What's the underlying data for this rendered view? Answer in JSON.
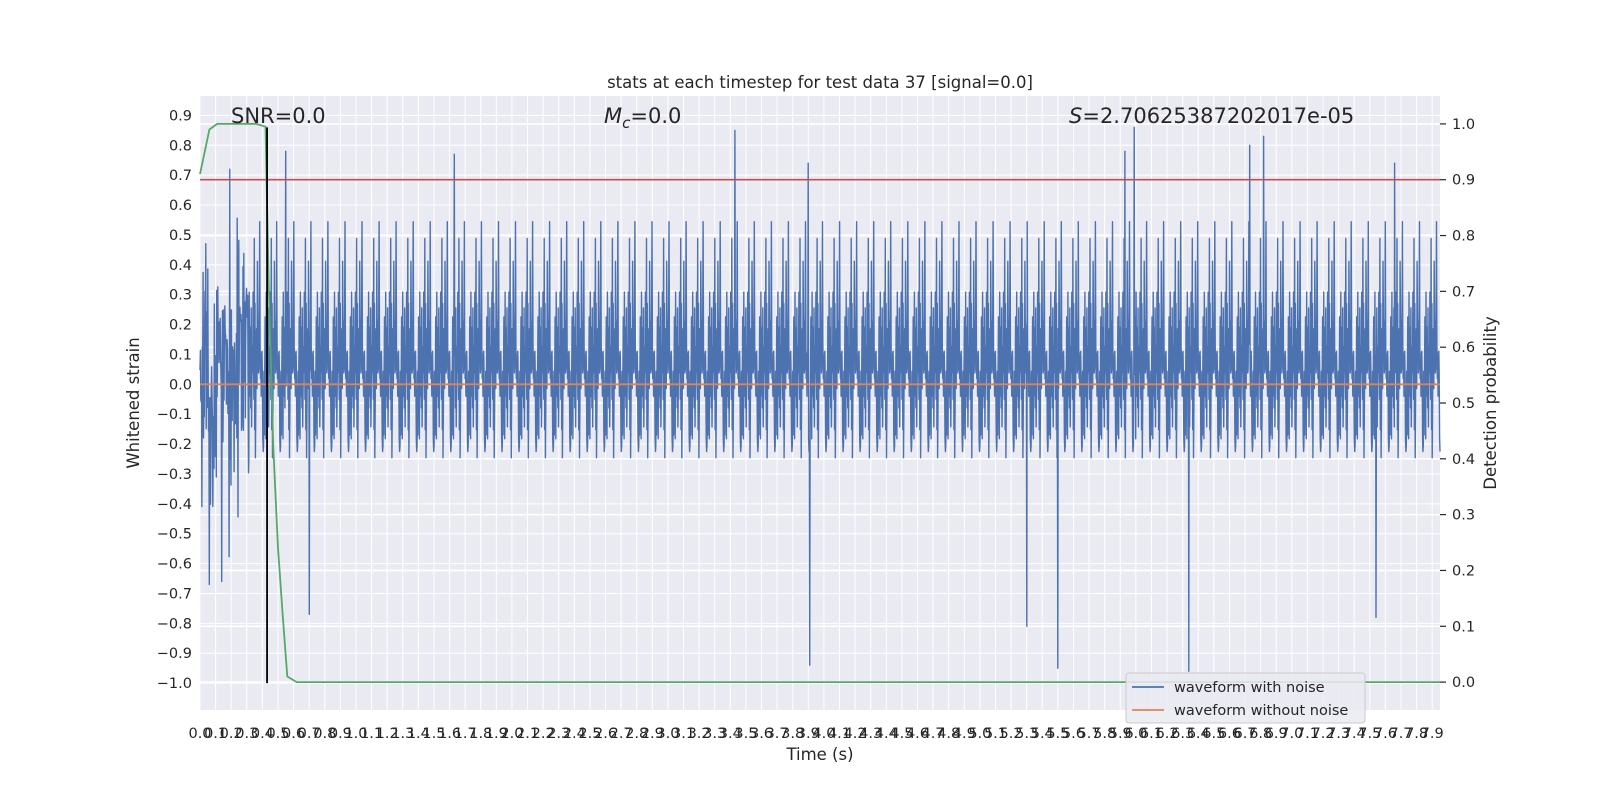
{
  "chart_data": {
    "type": "line",
    "title": "stats at each timestep for test data 37 [signal=0.0]",
    "xlabel": "Time (s)",
    "ylabel": "Whitened strain",
    "y2label": "Detection probability",
    "xlim": [
      0.0,
      7.95
    ],
    "ylim": [
      -1.09,
      0.965
    ],
    "y2lim": [
      -0.05,
      1.05
    ],
    "x_tick_labels": [
      "0.0",
      "0.1",
      "0.2",
      "0.3",
      "0.4",
      "0.5",
      "0.6",
      "0.7",
      "0.8",
      "0.9",
      "1.0",
      "1.1",
      "1.2",
      "1.3",
      "1.4",
      "1.5",
      "1.6",
      "1.7",
      "1.8",
      "1.9",
      "2.0",
      "2.1",
      "2.2",
      "2.3",
      "2.4",
      "2.5",
      "2.6",
      "2.7",
      "2.8",
      "2.9",
      "3.0",
      "3.1",
      "3.2",
      "3.3",
      "3.4",
      "3.5",
      "3.6",
      "3.7",
      "3.8",
      "3.9",
      "4.0",
      "4.1",
      "4.2",
      "4.3",
      "4.4",
      "4.5",
      "4.6",
      "4.7",
      "4.8",
      "4.9",
      "5.0",
      "5.1",
      "5.2",
      "5.3",
      "5.4",
      "5.5",
      "5.6",
      "5.7",
      "5.8",
      "5.9",
      "6.0",
      "6.1",
      "6.2",
      "6.3",
      "6.4",
      "6.5",
      "6.6",
      "6.7",
      "6.8",
      "6.9",
      "7.0",
      "7.1",
      "7.2",
      "7.3",
      "7.4",
      "7.5",
      "7.6",
      "7.7",
      "7.8",
      "7.9"
    ],
    "y_tick_labels": [
      "−1.0",
      "−0.9",
      "−0.8",
      "−0.7",
      "−0.6",
      "−0.5",
      "−0.4",
      "−0.3",
      "−0.2",
      "−0.1",
      "0.0",
      "0.1",
      "0.2",
      "0.3",
      "0.4",
      "0.5",
      "0.6",
      "0.7",
      "0.8",
      "0.9"
    ],
    "y2_tick_labels": [
      "0.0",
      "0.1",
      "0.2",
      "0.3",
      "0.4",
      "0.5",
      "0.6",
      "0.7",
      "0.8",
      "0.9",
      "1.0"
    ],
    "annotations": {
      "snr": "SNR=0.0",
      "mc_symbol": "M",
      "mc_subscript": "c",
      "mc_value": "=0.0",
      "s_symbol": "S",
      "s_value": "=2.70625387202017e-05"
    },
    "series": [
      {
        "name": "waveform with noise",
        "axis": "left",
        "color": "#4c72b0",
        "description": "dense noise trace, roughly between -0.5 and 0.5 with spikes",
        "range": [
          -0.97,
          0.87
        ],
        "spikes": [
          {
            "x": 0.55,
            "y": 0.78
          },
          {
            "x": 1.63,
            "y": 0.77
          },
          {
            "x": 3.43,
            "y": 0.85
          },
          {
            "x": 3.9,
            "y": 0.74
          },
          {
            "x": 3.91,
            "y": -0.94
          },
          {
            "x": 5.93,
            "y": 0.78
          },
          {
            "x": 5.99,
            "y": 0.86
          },
          {
            "x": 6.34,
            "y": -0.96
          },
          {
            "x": 6.73,
            "y": 0.8
          },
          {
            "x": 6.82,
            "y": 0.83
          },
          {
            "x": 7.66,
            "y": 0.74
          },
          {
            "x": 7.54,
            "y": -0.78
          },
          {
            "x": 5.5,
            "y": -0.95
          },
          {
            "x": 5.3,
            "y": -0.81
          },
          {
            "x": 0.7,
            "y": -0.77
          },
          {
            "x": 0.06,
            "y": -0.67
          },
          {
            "x": 0.14,
            "y": -0.66
          }
        ]
      },
      {
        "name": "waveform without noise",
        "axis": "left",
        "color": "#dd8452",
        "x": [
          0.0,
          7.95
        ],
        "y": [
          0.0,
          0.0
        ]
      },
      {
        "name": "detection probability",
        "axis": "right",
        "color": "#55a868",
        "x": [
          0.0,
          0.06,
          0.11,
          0.2,
          0.36,
          0.42,
          0.44,
          0.47,
          0.5,
          0.53,
          0.56,
          0.62,
          1.0,
          4.0,
          7.95
        ],
        "y": [
          0.91,
          0.99,
          1.0,
          1.0,
          1.0,
          0.995,
          0.72,
          0.42,
          0.24,
          0.12,
          0.01,
          0.0,
          0.0,
          0.0,
          0.0
        ]
      },
      {
        "name": "threshold",
        "axis": "right",
        "color": "#c44e52",
        "x": [
          0.0,
          7.95
        ],
        "y": [
          0.9,
          0.9
        ]
      },
      {
        "name": "vertical marker",
        "axis": "left",
        "color": "#000000",
        "x": [
          0.43,
          0.43
        ],
        "y": [
          -1.0,
          0.86
        ]
      }
    ],
    "legend": {
      "position": "lower-right",
      "entries": [
        {
          "label": "waveform with noise",
          "color": "#4c72b0"
        },
        {
          "label": "waveform without noise",
          "color": "#dd8452"
        }
      ]
    },
    "grid": true
  }
}
